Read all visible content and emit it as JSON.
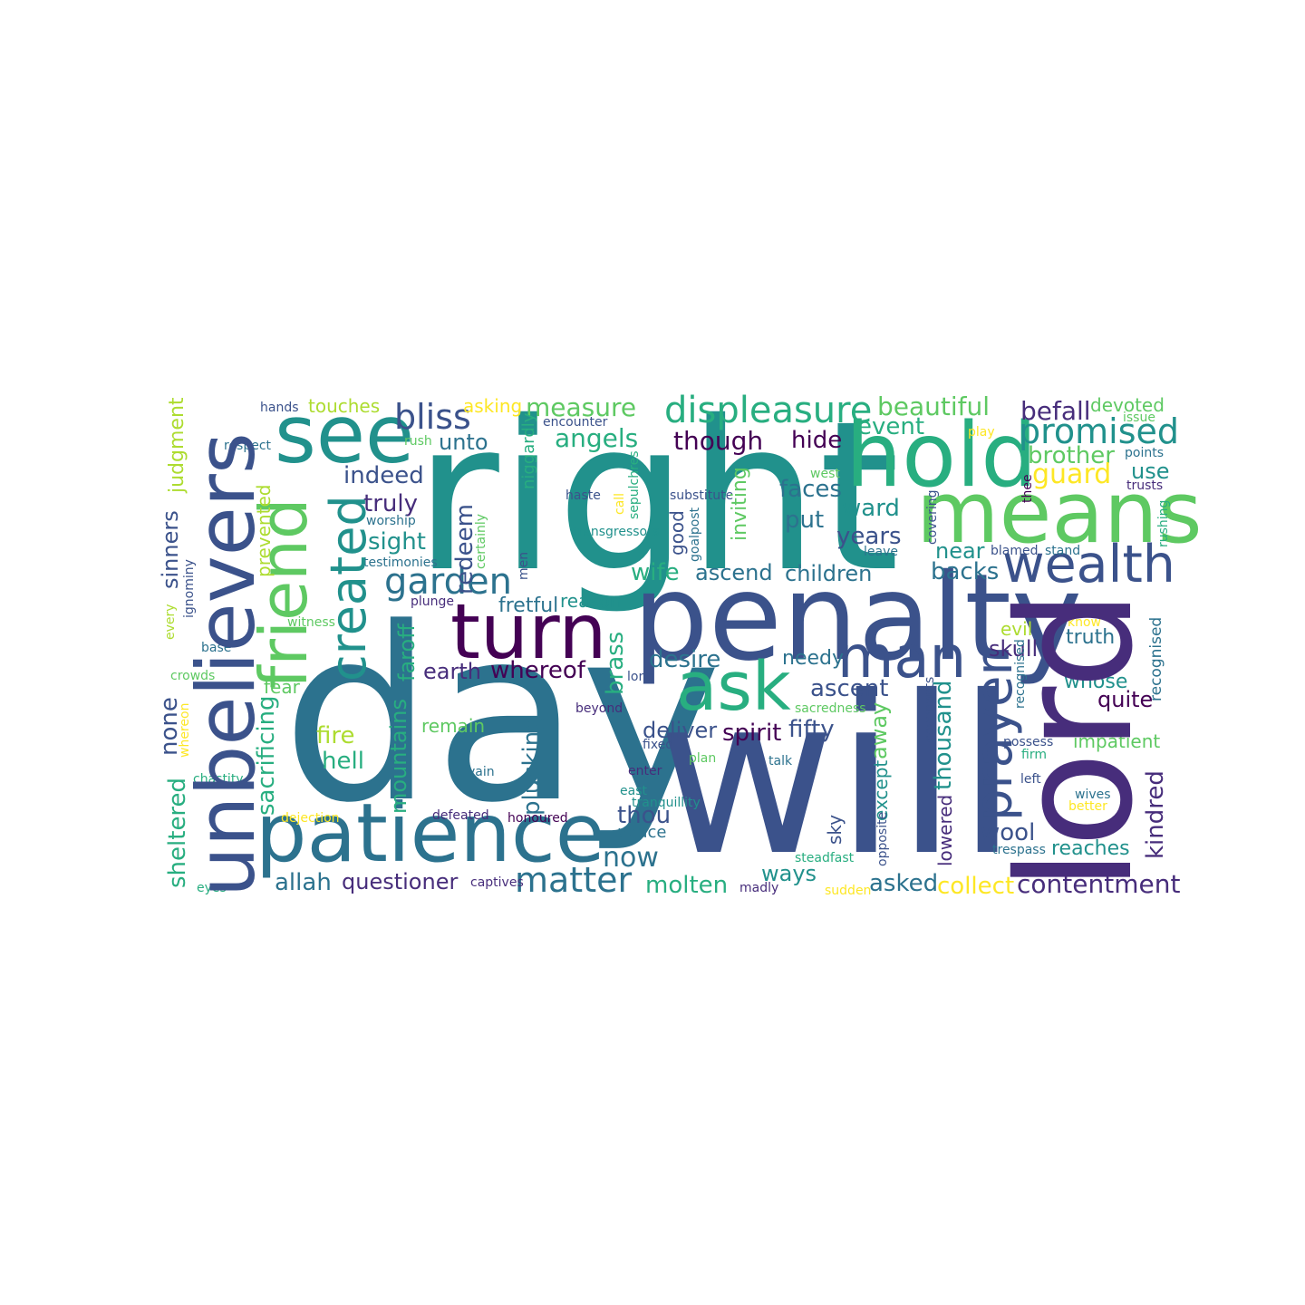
{
  "palette": {
    "dark_purple": "#440154",
    "purple": "#472d7b",
    "indigo": "#3b528b",
    "blue": "#2c728e",
    "teal": "#21918c",
    "sea_green": "#28ae80",
    "green": "#5ec962",
    "lime": "#addc30",
    "yellow": "#fde725"
  },
  "words": [
    {
      "text": "day",
      "color": "#2c728e"
    },
    {
      "text": "will",
      "color": "#3b528b"
    },
    {
      "text": "right",
      "color": "#21918c"
    },
    {
      "text": "penalty",
      "color": "#3b528b"
    },
    {
      "text": "lord",
      "color": "#472d7b"
    },
    {
      "text": "unbelievers",
      "color": "#3b528b"
    },
    {
      "text": "hold",
      "color": "#28ae80"
    },
    {
      "text": "means",
      "color": "#5ec962"
    },
    {
      "text": "patience",
      "color": "#2c728e"
    },
    {
      "text": "turn",
      "color": "#440154"
    },
    {
      "text": "see",
      "color": "#21918c"
    },
    {
      "text": "friend",
      "color": "#5ec962"
    },
    {
      "text": "ask",
      "color": "#28ae80"
    },
    {
      "text": "man",
      "color": "#3b528b"
    },
    {
      "text": "wealth",
      "color": "#3b528b"
    },
    {
      "text": "created",
      "color": "#21918c"
    },
    {
      "text": "prayer",
      "color": "#3b528b"
    },
    {
      "text": "displeasure",
      "color": "#28ae80"
    },
    {
      "text": "promised",
      "color": "#21918c"
    },
    {
      "text": "bliss",
      "color": "#3b528b"
    },
    {
      "text": "garden",
      "color": "#2c728e"
    },
    {
      "text": "matter",
      "color": "#2c728e"
    },
    {
      "text": "contentment",
      "color": "#472d7b"
    },
    {
      "text": "measure",
      "color": "#5ec962"
    },
    {
      "text": "beautiful",
      "color": "#5ec962"
    },
    {
      "text": "befall",
      "color": "#472d7b"
    },
    {
      "text": "angels",
      "color": "#28ae80"
    },
    {
      "text": "though",
      "color": "#440154"
    },
    {
      "text": "hide",
      "color": "#440154"
    },
    {
      "text": "event",
      "color": "#28ae80"
    },
    {
      "text": "brother",
      "color": "#5ec962"
    },
    {
      "text": "guard",
      "color": "#fde725"
    },
    {
      "text": "use",
      "color": "#21918c"
    },
    {
      "text": "devoted",
      "color": "#5ec962"
    },
    {
      "text": "unto",
      "color": "#2c728e"
    },
    {
      "text": "indeed",
      "color": "#3b528b"
    },
    {
      "text": "truly",
      "color": "#472d7b"
    },
    {
      "text": "sight",
      "color": "#21918c"
    },
    {
      "text": "redeem",
      "color": "#3b528b"
    },
    {
      "text": "faces",
      "color": "#2c728e"
    },
    {
      "text": "put",
      "color": "#2c728e"
    },
    {
      "text": "years",
      "color": "#3b528b"
    },
    {
      "text": "ward",
      "color": "#21918c"
    },
    {
      "text": "near",
      "color": "#21918c"
    },
    {
      "text": "backs",
      "color": "#2c728e"
    },
    {
      "text": "wife",
      "color": "#28ae80"
    },
    {
      "text": "ascend",
      "color": "#2c728e"
    },
    {
      "text": "children",
      "color": "#2c728e"
    },
    {
      "text": "fretful",
      "color": "#2c728e"
    },
    {
      "text": "reason",
      "color": "#21918c"
    },
    {
      "text": "faroff",
      "color": "#28ae80"
    },
    {
      "text": "earth",
      "color": "#472d7b"
    },
    {
      "text": "whereof",
      "color": "#440154"
    },
    {
      "text": "desire",
      "color": "#2c728e"
    },
    {
      "text": "needy",
      "color": "#2c728e"
    },
    {
      "text": "ascent",
      "color": "#3b528b"
    },
    {
      "text": "skull",
      "color": "#472d7b"
    },
    {
      "text": "evil",
      "color": "#addc30"
    },
    {
      "text": "truth",
      "color": "#2c728e"
    },
    {
      "text": "whose",
      "color": "#21918c"
    },
    {
      "text": "quite",
      "color": "#440154"
    },
    {
      "text": "sinners",
      "color": "#3b528b"
    },
    {
      "text": "none",
      "color": "#3b528b"
    },
    {
      "text": "mountains",
      "color": "#28ae80"
    },
    {
      "text": "fear",
      "color": "#5ec962"
    },
    {
      "text": "sacrificing",
      "color": "#28ae80"
    },
    {
      "text": "fire",
      "color": "#addc30"
    },
    {
      "text": "hell",
      "color": "#28ae80"
    },
    {
      "text": "remain",
      "color": "#5ec962"
    },
    {
      "text": "plucking",
      "color": "#2c728e"
    },
    {
      "text": "brass",
      "color": "#28ae80"
    },
    {
      "text": "deliver",
      "color": "#3b528b"
    },
    {
      "text": "spirit",
      "color": "#440154"
    },
    {
      "text": "fifty",
      "color": "#3b528b"
    },
    {
      "text": "away",
      "color": "#5ec962"
    },
    {
      "text": "thousand",
      "color": "#21918c"
    },
    {
      "text": "impatient",
      "color": "#5ec962"
    },
    {
      "text": "kindred",
      "color": "#472d7b"
    },
    {
      "text": "wool",
      "color": "#3b528b"
    },
    {
      "text": "reaches",
      "color": "#21918c"
    },
    {
      "text": "collect",
      "color": "#fde725"
    },
    {
      "text": "asked",
      "color": "#2c728e"
    },
    {
      "text": "molten",
      "color": "#28ae80"
    },
    {
      "text": "ways",
      "color": "#21918c"
    },
    {
      "text": "thou",
      "color": "#3b528b"
    },
    {
      "text": "now",
      "color": "#2c728e"
    },
    {
      "text": "peace",
      "color": "#2c728e"
    },
    {
      "text": "questioner",
      "color": "#472d7b"
    },
    {
      "text": "allah",
      "color": "#2c728e"
    },
    {
      "text": "sheltered",
      "color": "#28ae80"
    },
    {
      "text": "judgment",
      "color": "#addc30"
    },
    {
      "text": "touches",
      "color": "#addc30"
    },
    {
      "text": "asking",
      "color": "#fde725"
    },
    {
      "text": "hands",
      "color": "#3b528b"
    },
    {
      "text": "respect",
      "color": "#2c728e"
    },
    {
      "text": "rush",
      "color": "#5ec962"
    },
    {
      "text": "encounter",
      "color": "#3b528b"
    },
    {
      "text": "niggardly",
      "color": "#28ae80"
    },
    {
      "text": "sepulchres",
      "color": "#28ae80"
    },
    {
      "text": "prevented",
      "color": "#addc30"
    },
    {
      "text": "inviting",
      "color": "#5ec962"
    },
    {
      "text": "good",
      "color": "#3b528b"
    },
    {
      "text": "goalpost",
      "color": "#2c728e"
    },
    {
      "text": "ones",
      "color": "#440154"
    },
    {
      "text": "substitute",
      "color": "#3b528b"
    },
    {
      "text": "transgressors",
      "color": "#21918c"
    },
    {
      "text": "certainly",
      "color": "#5ec962"
    },
    {
      "text": "men",
      "color": "#3b528b"
    },
    {
      "text": "call",
      "color": "#fde725"
    },
    {
      "text": "haste",
      "color": "#3b528b"
    },
    {
      "text": "worship",
      "color": "#2c728e"
    },
    {
      "text": "testimonies",
      "color": "#2c728e"
    },
    {
      "text": "ignominy",
      "color": "#3b528b"
    },
    {
      "text": "every",
      "color": "#addc30"
    },
    {
      "text": "plunge",
      "color": "#472d7b"
    },
    {
      "text": "witness",
      "color": "#5ec962"
    },
    {
      "text": "base",
      "color": "#2c728e"
    },
    {
      "text": "crowds",
      "color": "#5ec962"
    },
    {
      "text": "long",
      "color": "#3b528b"
    },
    {
      "text": "beyond",
      "color": "#472d7b"
    },
    {
      "text": "sacredness",
      "color": "#5ec962"
    },
    {
      "text": "fixed",
      "color": "#3b528b"
    },
    {
      "text": "plan",
      "color": "#5ec962"
    },
    {
      "text": "talk",
      "color": "#2c728e"
    },
    {
      "text": "vain",
      "color": "#2c728e"
    },
    {
      "text": "enter",
      "color": "#472d7b"
    },
    {
      "text": "east",
      "color": "#21918c"
    },
    {
      "text": "tranquillity",
      "color": "#21918c"
    },
    {
      "text": "defeated",
      "color": "#472d7b"
    },
    {
      "text": "honoured",
      "color": "#440154"
    },
    {
      "text": "dejection",
      "color": "#fde725"
    },
    {
      "text": "whereon",
      "color": "#fde725"
    },
    {
      "text": "chastity",
      "color": "#28ae80"
    },
    {
      "text": "eyes",
      "color": "#28ae80"
    },
    {
      "text": "captives",
      "color": "#472d7b"
    },
    {
      "text": "madly",
      "color": "#472d7b"
    },
    {
      "text": "sudden",
      "color": "#fde725"
    },
    {
      "text": "steadfast",
      "color": "#28ae80"
    },
    {
      "text": "sky",
      "color": "#3b528b"
    },
    {
      "text": "except",
      "color": "#21918c"
    },
    {
      "text": "opposite",
      "color": "#3b528b"
    },
    {
      "text": "lowered",
      "color": "#472d7b"
    },
    {
      "text": "covenants",
      "color": "#3b528b"
    },
    {
      "text": "west",
      "color": "#5ec962"
    },
    {
      "text": "leave",
      "color": "#2c728e"
    },
    {
      "text": "play",
      "color": "#fde725"
    },
    {
      "text": "issue",
      "color": "#5ec962"
    },
    {
      "text": "thee",
      "color": "#440154"
    },
    {
      "text": "points",
      "color": "#2c728e"
    },
    {
      "text": "trusts",
      "color": "#472d7b"
    },
    {
      "text": "covering",
      "color": "#3b528b"
    },
    {
      "text": "blamed",
      "color": "#3b528b"
    },
    {
      "text": "stand",
      "color": "#2c728e"
    },
    {
      "text": "know",
      "color": "#fde725"
    },
    {
      "text": "rushing",
      "color": "#28ae80"
    },
    {
      "text": "recognised",
      "color": "#2c728e"
    },
    {
      "text": "possess",
      "color": "#3b528b"
    },
    {
      "text": "firm",
      "color": "#28ae80"
    },
    {
      "text": "left",
      "color": "#3b528b"
    },
    {
      "text": "wives",
      "color": "#2c728e"
    },
    {
      "text": "better",
      "color": "#fde725"
    },
    {
      "text": "trespass",
      "color": "#2c728e"
    }
  ]
}
